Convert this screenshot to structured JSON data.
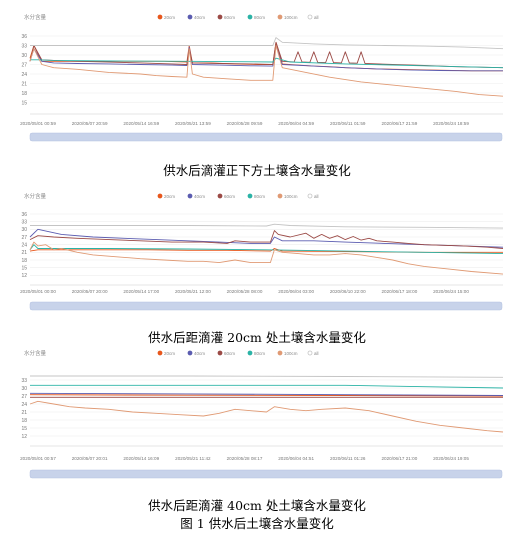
{
  "charts": [
    {
      "caption": "供水后滴灌正下方土壤含水量变化",
      "chart_data": {
        "type": "line",
        "ylabel": "水分含量",
        "ylim": [
          12,
          36
        ],
        "yticks": [
          15,
          18,
          21,
          24,
          27,
          30,
          33,
          36
        ],
        "x_tick_labels": [
          "2020/05/01 00:59",
          "2020/05/07 20:59",
          "2020/05/14 16:59",
          "2020/05/21 13:59",
          "2020/05/28 09:59",
          "2020/06/04 04:59",
          "2020/06/11 01:59",
          "2020/06/17 21:59",
          "2020/06/24 18:59"
        ],
        "legend": [
          "20cm",
          "40cm",
          "60cm",
          "80cm",
          "100cm",
          "all"
        ],
        "series": [
          {
            "name": "20cm",
            "color": "#e8571c",
            "x": [
              0,
              0.5,
              1.5,
              3,
              5,
              8,
              11,
              14,
              17,
              19.9,
              20.2,
              20.6,
              23,
              26,
              29,
              30.8,
              31.2,
              32,
              34,
              36,
              38,
              40,
              44,
              48,
              52,
              56,
              60
            ],
            "values": [
              29,
              33,
              28,
              28,
              28,
              28,
              28,
              28,
              28,
              27.8,
              33,
              27.5,
              27.5,
              27.2,
              27,
              27,
              34,
              27.2,
              26.8,
              26.5,
              26.3,
              26,
              25.6,
              25.4,
              25.2,
              25,
              25
            ]
          },
          {
            "name": "40cm",
            "color": "#5b5cb0",
            "x": [
              0,
              0.5,
              1.5,
              3,
              6,
              10,
              14,
              18,
              19.9,
              20.2,
              20.6,
              24,
              28,
              30.8,
              31.2,
              32,
              36,
              40,
              44,
              48,
              52,
              56,
              60
            ],
            "values": [
              28,
              32,
              28,
              27.5,
              27.3,
              27.2,
              27,
              26.8,
              26.7,
              32.5,
              27,
              26.8,
              26.6,
              26.5,
              33,
              27,
              26.5,
              26,
              25.6,
              25.3,
              25.1,
              25,
              25
            ]
          },
          {
            "name": "60cm",
            "color": "#9b4a46",
            "x": [
              0,
              0.5,
              1.5,
              3,
              6,
              10,
              14,
              18,
              19.9,
              20.2,
              20.6,
              24,
              28,
              30.8,
              31.2,
              32,
              33.5,
              34,
              34.5,
              35.5,
              36,
              36.5,
              37.5,
              38,
              38.5,
              39.5,
              40,
              40.5,
              41.5,
              42,
              42.5,
              46,
              50,
              54,
              60
            ],
            "values": [
              28,
              33,
              28.5,
              28.3,
              28,
              27.8,
              27.5,
              27.2,
              27,
              32,
              27.5,
              27.3,
              27.2,
              27,
              34,
              28,
              27.8,
              31,
              27.8,
              27.7,
              31,
              27.7,
              27.6,
              31,
              27.6,
              27.5,
              31,
              27.5,
              27.4,
              31,
              27.3,
              27,
              26.7,
              26.3,
              26
            ]
          },
          {
            "name": "80cm",
            "color": "#2bb3a6",
            "x": [
              0,
              1,
              3,
              10,
              20,
              30.8,
              31.2,
              33,
              40,
              50,
              60
            ],
            "values": [
              28.5,
              28.5,
              28.3,
              28.1,
              28,
              27.8,
              29,
              27.8,
              27.2,
              26.6,
              26
            ]
          },
          {
            "name": "100cm",
            "color": "#e09a74",
            "x": [
              0,
              0.5,
              1.5,
              3,
              6,
              10,
              14,
              16,
              18,
              19.9,
              20.2,
              20.6,
              22,
              25,
              28,
              30.8,
              31.2,
              32,
              35,
              38,
              42,
              46,
              50,
              54,
              57,
              60
            ],
            "values": [
              28,
              32,
              27,
              26,
              25.5,
              24.5,
              24,
              23.5,
              23.2,
              23,
              32,
              24,
              23,
              22.5,
              22,
              22,
              33,
              26,
              24.5,
              23,
              21.5,
              20.5,
              19.5,
              18.5,
              17.5,
              17
            ]
          },
          {
            "name": "all",
            "color": "#c4c4c4",
            "x": [
              0,
              1,
              5,
              10,
              20,
              30.8,
              31.2,
              32,
              36,
              40,
              45,
              50,
              55,
              60
            ],
            "values": [
              33,
              33,
              33,
              33,
              33,
              33,
              35.5,
              34,
              33.5,
              33.2,
              33,
              32.8,
              32.5,
              32
            ]
          }
        ]
      }
    },
    {
      "caption": "供水后距滴灌 20cm 处土壤含水量变化",
      "chart_data": {
        "type": "line",
        "ylabel": "水分含量",
        "ylim": [
          9,
          36
        ],
        "yticks": [
          12,
          15,
          18,
          21,
          24,
          27,
          30,
          33,
          36
        ],
        "x_tick_labels": [
          "2020/05/01 00:00",
          "2020/05/07 20:00",
          "2020/05/14 17:00",
          "2020/05/21 12:00",
          "2020/05/28 08:00",
          "2020/06/04 03:00",
          "2020/06/10 22:00",
          "2020/06/17 18:00",
          "2020/06/24 15:00"
        ],
        "legend": [
          "20cm",
          "40cm",
          "60cm",
          "80cm",
          "100cm",
          "all"
        ],
        "series": [
          {
            "name": "20cm",
            "color": "#e8571c",
            "x": [
              0,
              1,
              3,
              6,
              10,
              15,
              20,
              25,
              30.5,
              31,
              32,
              40,
              50,
              60
            ],
            "values": [
              21.5,
              22,
              22,
              22,
              22,
              22,
              21.8,
              21.8,
              21.5,
              22.5,
              21.5,
              21.3,
              21,
              21
            ]
          },
          {
            "name": "40cm",
            "color": "#5b5cb0",
            "x": [
              0,
              1,
              4,
              8,
              12,
              16,
              20,
              24,
              28,
              30.5,
              31,
              32,
              36,
              40,
              45,
              50,
              55,
              60
            ],
            "values": [
              27,
              30,
              28,
              27,
              26.5,
              26,
              25.5,
              25,
              24.5,
              24.5,
              27,
              25.5,
              25.5,
              25,
              24.5,
              24,
              23.5,
              23
            ]
          },
          {
            "name": "60cm",
            "color": "#9b4a46",
            "x": [
              0,
              1,
              3,
              6,
              10,
              14,
              18,
              22,
              25,
              26,
              28,
              30.5,
              31,
              31.5,
              33,
              35,
              36,
              37,
              38,
              39,
              40,
              41,
              42,
              43,
              44,
              46,
              48,
              50,
              52,
              55,
              58,
              60
            ],
            "values": [
              26,
              27.5,
              27,
              26.5,
              26,
              25.5,
              25,
              25,
              24.5,
              25.5,
              25,
              25,
              29.5,
              28,
              27,
              28.5,
              26.5,
              28,
              26.5,
              27.5,
              26,
              27.2,
              25.8,
              26.5,
              25.5,
              25,
              24.5,
              24,
              23.8,
              23.5,
              23,
              22.5
            ]
          },
          {
            "name": "80cm",
            "color": "#2bb3a6",
            "x": [
              0,
              0.5,
              1,
              10,
              20,
              30,
              40,
              50,
              60
            ],
            "values": [
              22,
              24,
              22.5,
              22.5,
              22.3,
              22,
              21.5,
              21,
              20.5
            ]
          },
          {
            "name": "100cm",
            "color": "#e09a74",
            "x": [
              0,
              0.5,
              1,
              2,
              3,
              4,
              6,
              8,
              10,
              12,
              14,
              17,
              20,
              22,
              24,
              26,
              28,
              30.5,
              31,
              32,
              34,
              36,
              38,
              40,
              42,
              44,
              46,
              48,
              50,
              53,
              56,
              60
            ],
            "values": [
              22,
              25,
              23.5,
              24,
              22,
              22.5,
              21,
              20,
              19.5,
              19,
              18.5,
              18,
              17.5,
              17.5,
              17,
              18,
              17,
              17,
              22,
              21,
              20.5,
              20,
              20,
              20.5,
              20,
              19,
              18,
              16.5,
              15.5,
              14.5,
              13.5,
              12.5
            ]
          },
          {
            "name": "all",
            "color": "#c4c4c4",
            "x": [
              0,
              10,
              20,
              30,
              31,
              33,
              40,
              50,
              60
            ],
            "values": [
              31.5,
              31.5,
              31.5,
              31.3,
              32,
              31.5,
              31,
              30.8,
              30.5
            ]
          }
        ]
      }
    },
    {
      "caption": "供水后距滴灌 40cm 处土壤含水量变化",
      "chart_data": {
        "type": "line",
        "ylabel": "水分含量",
        "ylim": [
          9,
          36
        ],
        "yticks": [
          12,
          15,
          18,
          21,
          24,
          27,
          30,
          33
        ],
        "x_tick_labels": [
          "2020/05/01 00:57",
          "2020/05/07 20:01",
          "2020/05/14 16:09",
          "2020/05/21 11:42",
          "2020/05/28 08:17",
          "2020/06/04 04:51",
          "2020/06/11 01:26",
          "2020/06/17 21:00",
          "2020/06/24 19:05"
        ],
        "legend": [
          "20cm",
          "40cm",
          "60cm",
          "80cm",
          "100cm",
          "all"
        ],
        "series": [
          {
            "name": "20cm",
            "color": "#e8571c",
            "x": [
              0,
              20,
              40,
              60
            ],
            "values": [
              27.5,
              27.3,
              27.2,
              27
            ]
          },
          {
            "name": "40cm",
            "color": "#5b5cb0",
            "x": [
              0,
              20,
              40,
              60
            ],
            "values": [
              28,
              27.8,
              27.5,
              27.2
            ]
          },
          {
            "name": "60cm",
            "color": "#9b4a46",
            "x": [
              0,
              20,
              40,
              60
            ],
            "values": [
              26.5,
              26.5,
              26.5,
              26.5
            ]
          },
          {
            "name": "80cm",
            "color": "#2bb3a6",
            "x": [
              0,
              20,
              40,
              50,
              60
            ],
            "values": [
              31,
              31,
              31,
              30.5,
              30
            ]
          },
          {
            "name": "100cm",
            "color": "#e09a74",
            "x": [
              0,
              1,
              3,
              5,
              7,
              10,
              13,
              16,
              19,
              22,
              24,
              26,
              28,
              30,
              31,
              33,
              35,
              37,
              40,
              43,
              46,
              49,
              52,
              55,
              58,
              60
            ],
            "values": [
              24,
              25,
              24,
              23,
              22.5,
              22,
              21,
              20.5,
              20,
              19.5,
              20.5,
              22,
              21.5,
              21,
              23,
              22,
              21.5,
              22,
              22.5,
              21.5,
              19.5,
              17.5,
              16,
              15,
              14,
              13.5
            ]
          },
          {
            "name": "all",
            "color": "#c4c4c4",
            "x": [
              0,
              20,
              40,
              60
            ],
            "values": [
              34.5,
              34.5,
              34.3,
              34
            ]
          }
        ]
      }
    }
  ],
  "figure_caption": "图 1 供水后土壤含水量变化"
}
